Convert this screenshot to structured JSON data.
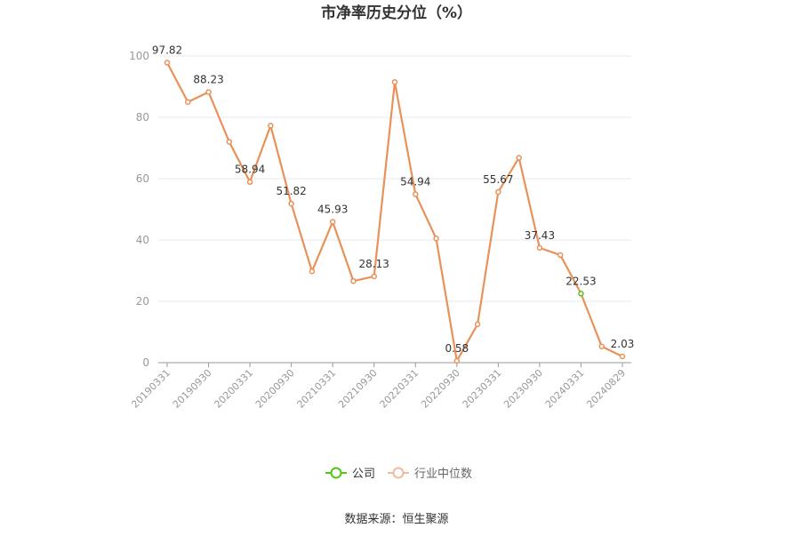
{
  "chart_data": {
    "type": "line",
    "title": "市净率历史分位（%）",
    "ylim": [
      0,
      100
    ],
    "yticks": [
      0,
      20,
      40,
      60,
      80,
      100
    ],
    "grid": true,
    "legend_position": "bottom-center",
    "x_tick_labels": [
      "20190331",
      "20190930",
      "20200331",
      "20200930",
      "20210331",
      "20210930",
      "20220331",
      "20220930",
      "20230331",
      "20230930",
      "20240331",
      "20240829"
    ],
    "x": [
      "20190331",
      "20190630",
      "20190930",
      "20191231",
      "20200331",
      "20200630",
      "20200930",
      "20201231",
      "20210331",
      "20210630",
      "20210930",
      "20211231",
      "20220331",
      "20220630",
      "20220930",
      "20221231",
      "20230331",
      "20230630",
      "20230930",
      "20231231",
      "20240331",
      "20240630",
      "20240829"
    ],
    "series": [
      {
        "name": "公司",
        "color": "#52c41a",
        "values": [
          97.82,
          85,
          88.23,
          72,
          58.94,
          77.3,
          51.82,
          29.8,
          45.93,
          26.6,
          28.13,
          91.5,
          54.94,
          40.5,
          0.58,
          12.5,
          55.67,
          66.8,
          37.43,
          35.1,
          22.53,
          5.3,
          2.03
        ]
      },
      {
        "name": "行业中位数",
        "color": "#f0a880",
        "values": [
          97.82,
          85,
          88.23,
          72,
          58.94,
          77.3,
          51.82,
          29.8,
          45.93,
          26.6,
          28.13,
          91.5,
          54.94,
          40.5,
          0.58,
          12.5,
          55.67,
          66.8,
          37.43,
          35.1,
          22.53,
          5.3,
          2.03
        ]
      }
    ],
    "data_labels": [
      {
        "index": 0,
        "text": "97.82"
      },
      {
        "index": 2,
        "text": "88.23"
      },
      {
        "index": 4,
        "text": "58.94"
      },
      {
        "index": 6,
        "text": "51.82"
      },
      {
        "index": 8,
        "text": "45.93"
      },
      {
        "index": 10,
        "text": "28.13"
      },
      {
        "index": 12,
        "text": "54.94"
      },
      {
        "index": 14,
        "text": "0.58"
      },
      {
        "index": 16,
        "text": "55.67"
      },
      {
        "index": 18,
        "text": "37.43"
      },
      {
        "index": 20,
        "text": "22.53"
      },
      {
        "index": 22,
        "text": "2.03"
      }
    ],
    "line_color": "#e8925a"
  },
  "source": "数据来源：恒生聚源"
}
